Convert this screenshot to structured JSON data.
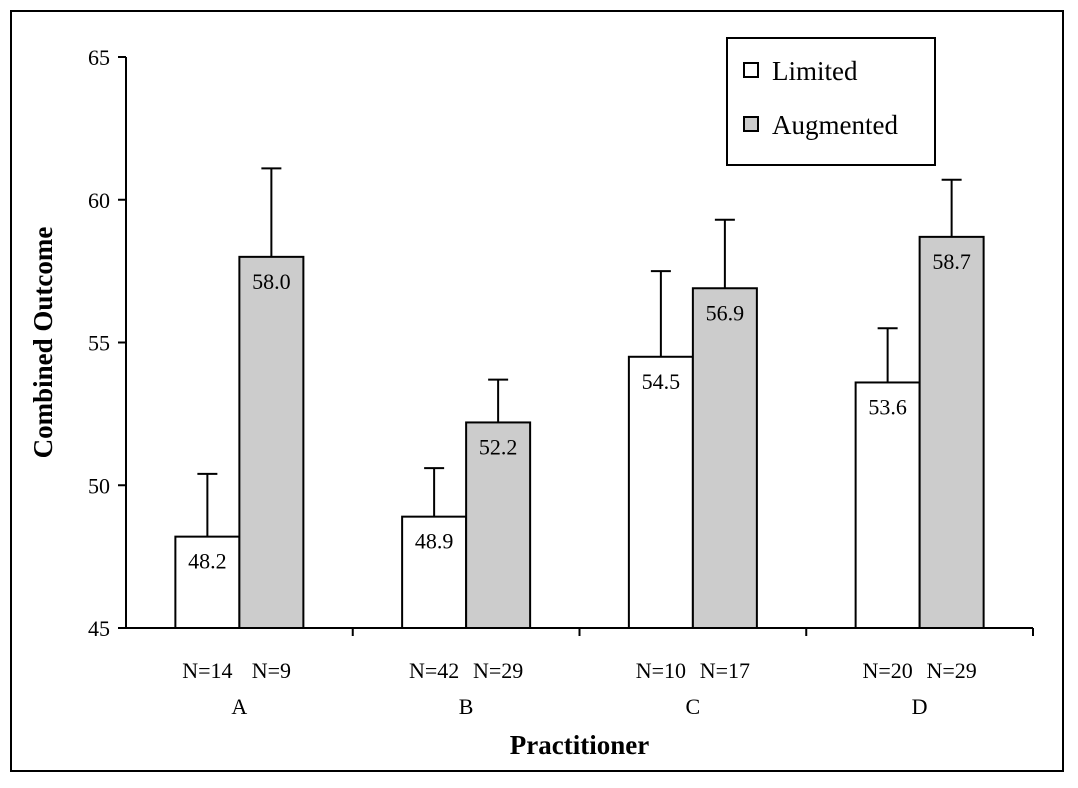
{
  "chart_data": {
    "type": "bar",
    "title": "",
    "xlabel": "Practitioner",
    "ylabel": "Combined Outcome",
    "ylim": [
      45,
      65
    ],
    "yticks": [
      45,
      50,
      55,
      60,
      65
    ],
    "categories": [
      "A",
      "B",
      "C",
      "D"
    ],
    "series": [
      {
        "name": "Limited",
        "color": "#ffffff",
        "values": [
          48.2,
          48.9,
          54.5,
          53.6
        ],
        "error_upper": [
          50.4,
          50.6,
          57.5,
          55.5
        ],
        "n_labels": [
          "N=14",
          "N=42",
          "N=10",
          "N=20"
        ]
      },
      {
        "name": "Augmented",
        "color": "#cccccc",
        "values": [
          58.0,
          52.2,
          56.9,
          58.7
        ],
        "error_upper": [
          61.1,
          53.7,
          59.3,
          60.7
        ],
        "n_labels": [
          "N=9",
          "N=29",
          "N=17",
          "N=29"
        ]
      }
    ],
    "legend_position": "top-right",
    "grid": false
  }
}
